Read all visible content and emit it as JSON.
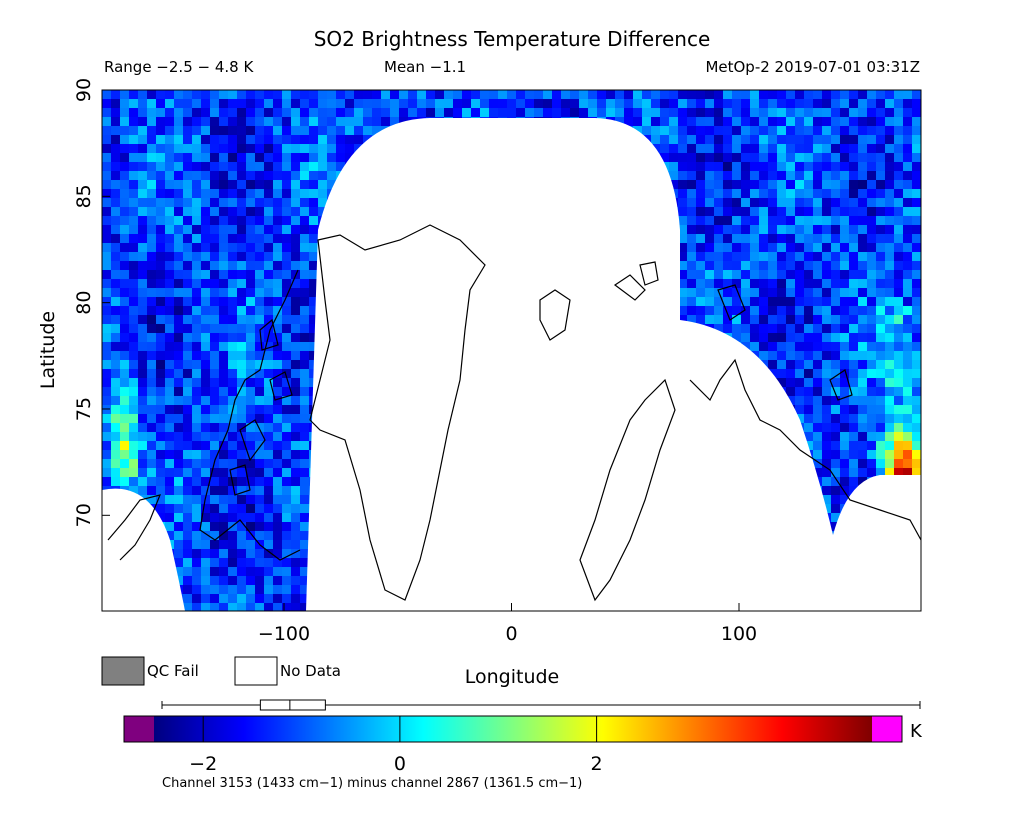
{
  "chart_data": {
    "type": "heatmap",
    "title": "SO2 Brightness Temperature Difference",
    "range_text": "Range −2.5 − 4.8 K",
    "mean_text": "Mean −1.1",
    "sat_text": "MetOp-2 2019-07-01 03:31Z",
    "xlabel": "Longitude",
    "ylabel": "Latitude",
    "xlim": [
      -180,
      180
    ],
    "ylim": [
      65.5,
      90
    ],
    "xticks": [
      -100,
      0,
      100
    ],
    "xtick_labels": [
      "−100",
      "0",
      "100"
    ],
    "yticks": [
      70,
      75,
      80,
      85,
      90
    ],
    "ytick_labels": [
      "70",
      "75",
      "80",
      "85",
      "90"
    ],
    "legend": [
      {
        "label": "QC Fail",
        "color": "#808080"
      },
      {
        "label": "No Data",
        "color": "#ffffff"
      }
    ],
    "colorbar": {
      "unit": "K",
      "vmin": -2.5,
      "vmax": 4.8,
      "ticks": [
        -2,
        0,
        2
      ],
      "tick_labels": [
        "−2",
        "0",
        "2"
      ],
      "under_color": "#7f007f",
      "over_color": "#ff00ff",
      "colors": [
        "#00007f",
        "#0000ff",
        "#0080ff",
        "#00ffff",
        "#80ff80",
        "#ffff00",
        "#ff8000",
        "#ff0000",
        "#7f0000"
      ]
    },
    "boxplot": {
      "min": -2.5,
      "q1": -1.5,
      "median": -1.2,
      "q3": -0.9,
      "max": 4.8
    },
    "caption": "Channel 3153 (1433 cm−1) minus channel 2867 (1361.5 cm−1)"
  }
}
